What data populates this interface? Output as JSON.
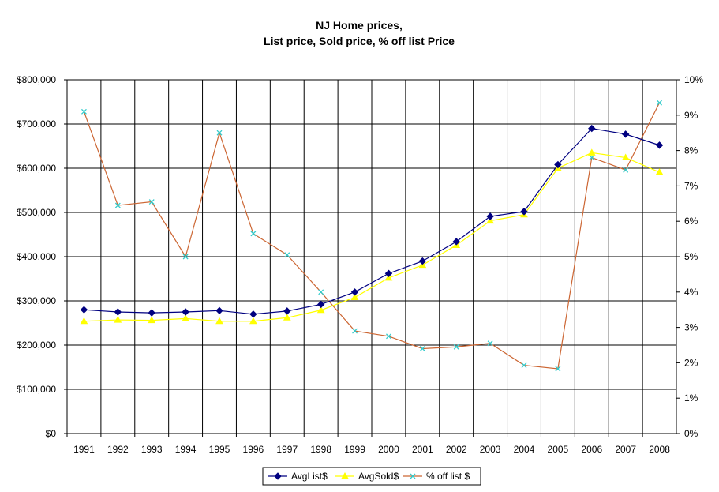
{
  "chart_data": {
    "type": "line",
    "title_lines": [
      "NJ Home prices,",
      "List price,  Sold price,  % off list Price"
    ],
    "categories": [
      "1991",
      "1992",
      "1993",
      "1994",
      "1995",
      "1996",
      "1997",
      "1998",
      "1999",
      "2000",
      "2001",
      "2002",
      "2003",
      "2004",
      "2005",
      "2006",
      "2007",
      "2008"
    ],
    "y_left": {
      "min": 0,
      "max": 800000,
      "ticks": [
        "$0",
        "$100,000",
        "$200,000",
        "$300,000",
        "$400,000",
        "$500,000",
        "$600,000",
        "$700,000",
        "$800,000"
      ]
    },
    "y_right": {
      "min": 0,
      "max": 10,
      "ticks": [
        "0%",
        "1%",
        "2%",
        "3%",
        "4%",
        "5%",
        "6%",
        "7%",
        "8%",
        "9%",
        "10%"
      ]
    },
    "grid": true,
    "legend_position": "bottom",
    "series": [
      {
        "name": "AvgList$",
        "axis": "left",
        "color": "#000080",
        "marker": "diamond",
        "values": [
          280000,
          275000,
          273000,
          275000,
          278000,
          270000,
          277000,
          292000,
          320000,
          362000,
          390000,
          434000,
          491000,
          502000,
          608000,
          690000,
          677000,
          652000
        ]
      },
      {
        "name": "AvgSold$",
        "axis": "left",
        "color": "#FFFF00",
        "marker": "triangle",
        "values": [
          254000,
          257000,
          256000,
          260000,
          254000,
          254000,
          262000,
          279000,
          308000,
          352000,
          381000,
          426000,
          481000,
          495000,
          600000,
          635000,
          624000,
          591000
        ]
      },
      {
        "name": "% off list $",
        "axis": "right",
        "color": "#CC6633",
        "marker_color": "#33CCCC",
        "marker": "x",
        "values": [
          9.1,
          6.45,
          6.55,
          5.0,
          8.5,
          5.65,
          5.05,
          4.0,
          2.9,
          2.75,
          2.4,
          2.45,
          2.55,
          1.93,
          1.83,
          7.8,
          7.45,
          9.35
        ]
      }
    ]
  }
}
